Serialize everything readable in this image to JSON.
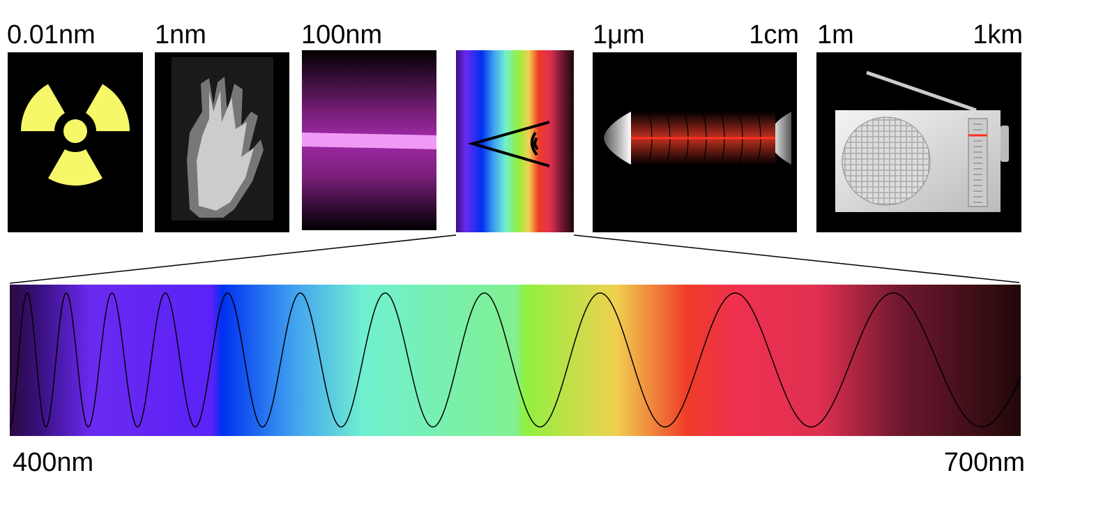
{
  "scale_labels": [
    "0.01nm",
    "1nm",
    "100nm",
    "1μm",
    "1cm",
    "1m",
    "1km"
  ],
  "visible_range": {
    "start": "400nm",
    "end": "700nm"
  }
}
